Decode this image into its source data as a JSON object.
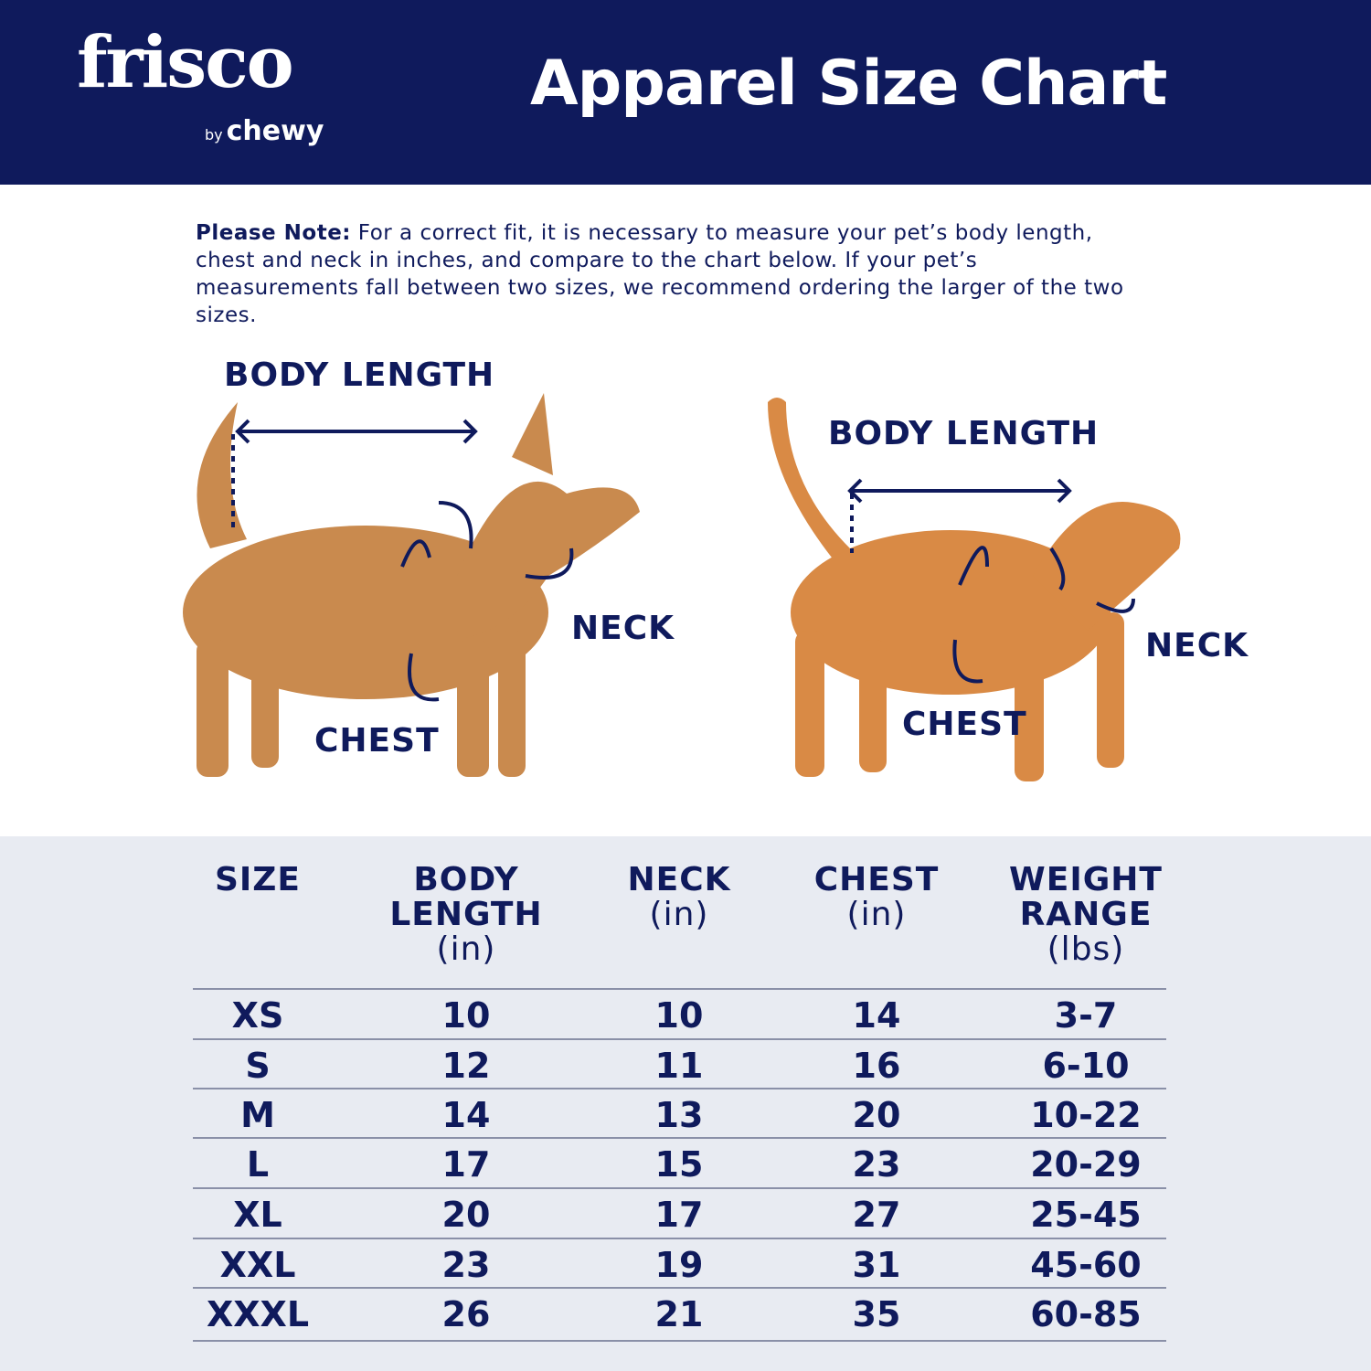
{
  "header": {
    "logo_brand": "frisco",
    "logo_by": "by",
    "logo_chewy": "chewy",
    "title": "Apparel Size Chart",
    "bg_color": "#0f1a5c"
  },
  "note": {
    "label": "Please Note:",
    "text": " For a correct fit, it is necessary to measure your pet’s body length, chest and neck in inches, and compare to the chart below. If your pet’s measurements fall between two sizes, we recommend ordering the larger of the two sizes."
  },
  "dog": {
    "body_length": "BODY LENGTH",
    "neck": "NECK",
    "chest": "CHEST"
  },
  "cat": {
    "body_length": "BODY LENGTH",
    "neck": "NECK",
    "chest": "CHEST"
  },
  "table": {
    "headers": [
      {
        "title": "SIZE",
        "unit": ""
      },
      {
        "title": "BODY LENGTH",
        "unit": "(in)"
      },
      {
        "title": "NECK",
        "unit": "(in)"
      },
      {
        "title": "CHEST",
        "unit": "(in)"
      },
      {
        "title": "WEIGHT RANGE",
        "unit": "(lbs)"
      }
    ],
    "rows": [
      [
        "XS",
        "10",
        "10",
        "14",
        "3-7"
      ],
      [
        "S",
        "12",
        "11",
        "16",
        "6-10"
      ],
      [
        "M",
        "14",
        "13",
        "20",
        "10-22"
      ],
      [
        "L",
        "17",
        "15",
        "23",
        "20-29"
      ],
      [
        "XL",
        "20",
        "17",
        "27",
        "25-45"
      ],
      [
        "XXL",
        "23",
        "19",
        "31",
        "45-60"
      ],
      [
        "XXXL",
        "26",
        "21",
        "35",
        "60-85"
      ]
    ]
  }
}
